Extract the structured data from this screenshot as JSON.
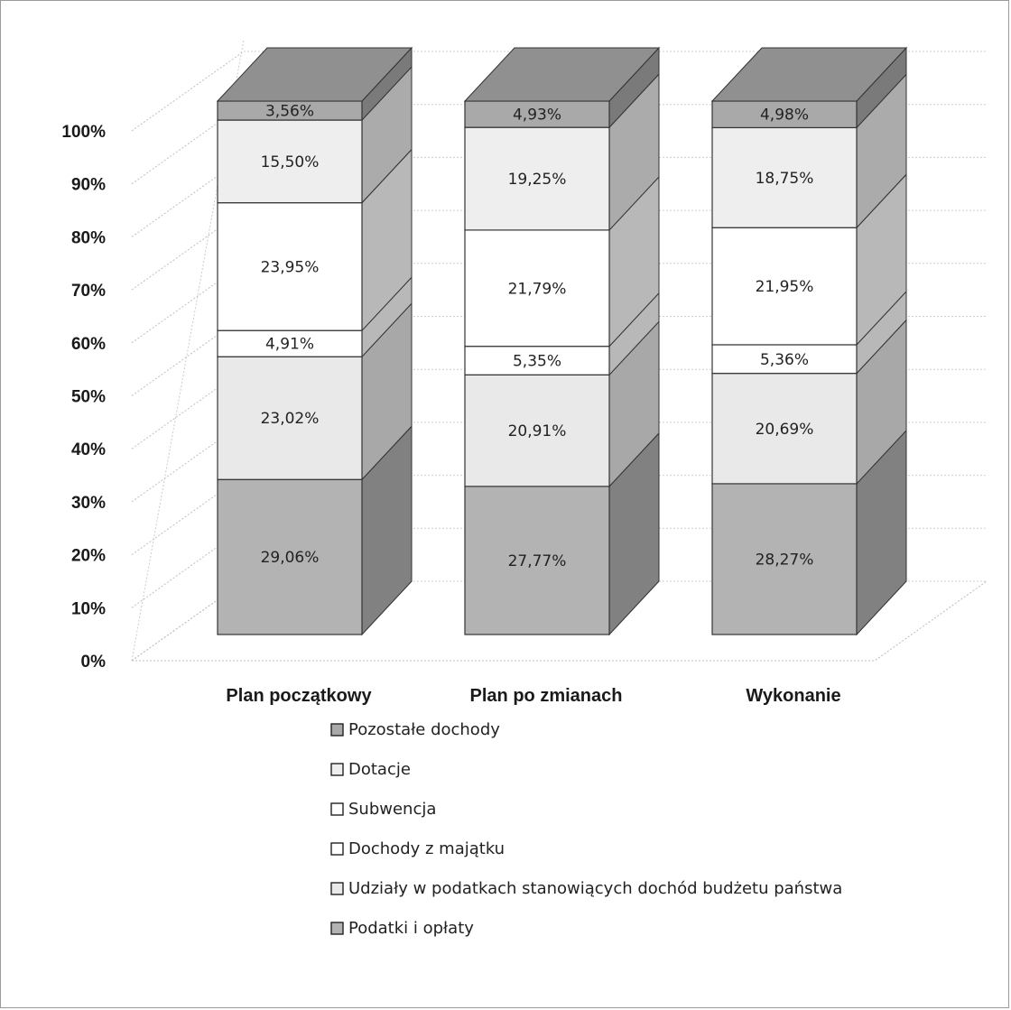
{
  "chart_data": {
    "type": "bar",
    "stacked": true,
    "percent_stacked": true,
    "three_d": true,
    "categories": [
      "Plan początkowy",
      "Plan po zmianach",
      "Wykonanie"
    ],
    "y_ticks": [
      "0%",
      "10%",
      "20%",
      "30%",
      "40%",
      "50%",
      "60%",
      "70%",
      "80%",
      "90%",
      "100%"
    ],
    "ylim": [
      0,
      100
    ],
    "grid": true,
    "legend_position": "bottom",
    "series": [
      {
        "name": "Podatki i opłaty",
        "values": [
          29.06,
          27.77,
          28.27
        ],
        "labels": [
          "29,06%",
          "27,77%",
          "28,27%"
        ],
        "color": "#b3b3b3"
      },
      {
        "name": "Udziały w podatkach stanowiących dochód budżetu państwa",
        "values": [
          23.02,
          20.91,
          20.69
        ],
        "labels": [
          "23,02%",
          "20,91%",
          "20,69%"
        ],
        "color": "#e9e9e9"
      },
      {
        "name": "Dochody z majątku",
        "values": [
          4.91,
          5.35,
          5.36
        ],
        "labels": [
          "4,91%",
          "5,35%",
          "5,36%"
        ],
        "color": "#ffffff"
      },
      {
        "name": "Subwencja",
        "values": [
          23.95,
          21.79,
          21.95
        ],
        "labels": [
          "23,95%",
          "21,79%",
          "21,95%"
        ],
        "color": "#ffffff"
      },
      {
        "name": "Dotacje",
        "values": [
          15.5,
          19.25,
          18.75
        ],
        "labels": [
          "15,50%",
          "19,25%",
          "18,75%"
        ],
        "color": "#eeeeee"
      },
      {
        "name": "Pozostałe dochody",
        "values": [
          3.56,
          4.93,
          4.98
        ],
        "labels": [
          "3,56%",
          "4,93%",
          "4,98%"
        ],
        "color": "#a9a9a9"
      }
    ],
    "legend_order": [
      "Pozostałe dochody",
      "Dotacje",
      "Subwencja",
      "Dochody z majątku",
      "Udziały w podatkach stanowiących dochód budżetu państwa",
      "Podatki i opłaty"
    ]
  }
}
